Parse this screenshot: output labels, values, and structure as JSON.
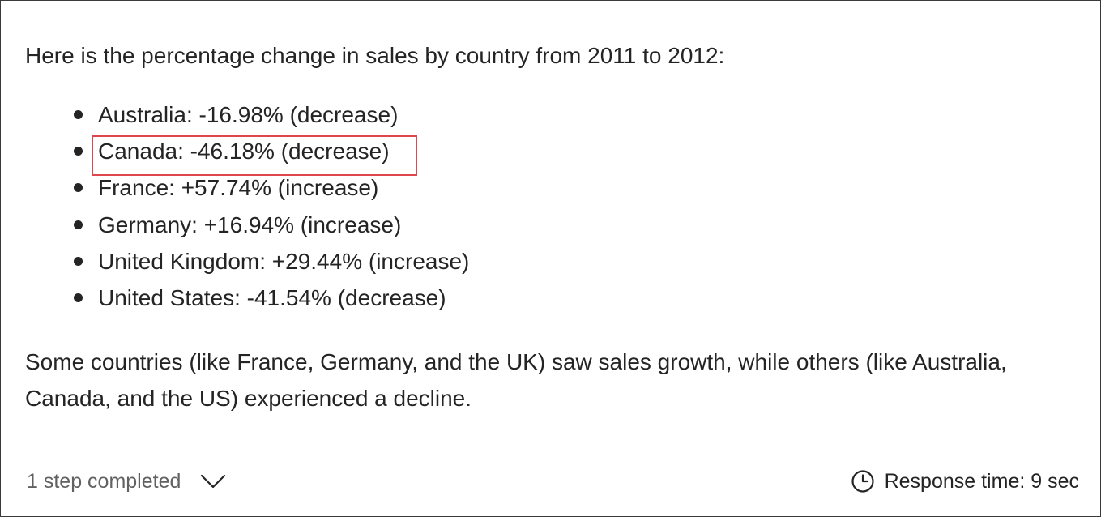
{
  "response": {
    "intro": "Here is the percentage change in sales by country from 2011 to 2012:",
    "items": [
      {
        "text": "Australia: -16.98% (decrease)"
      },
      {
        "text": "Canada: -46.18% (decrease)",
        "highlighted": true
      },
      {
        "text": "France: +57.74% (increase)"
      },
      {
        "text": "Germany: +16.94% (increase)"
      },
      {
        "text": "United Kingdom: +29.44% (increase)"
      },
      {
        "text": "United States: -41.54% (decrease)"
      }
    ],
    "summary": "Some countries (like France, Germany, and the UK) saw sales growth, while others (like Australia, Canada, and the US) experienced a decline."
  },
  "footer": {
    "steps_label": "1 step completed",
    "steps_icon": "chevron-down-icon",
    "response_time_label": "Response time: 9 sec",
    "response_time_icon": "clock-icon"
  },
  "colors": {
    "text": "#242424",
    "muted_text": "#616161",
    "highlight_border": "#e0474c"
  }
}
